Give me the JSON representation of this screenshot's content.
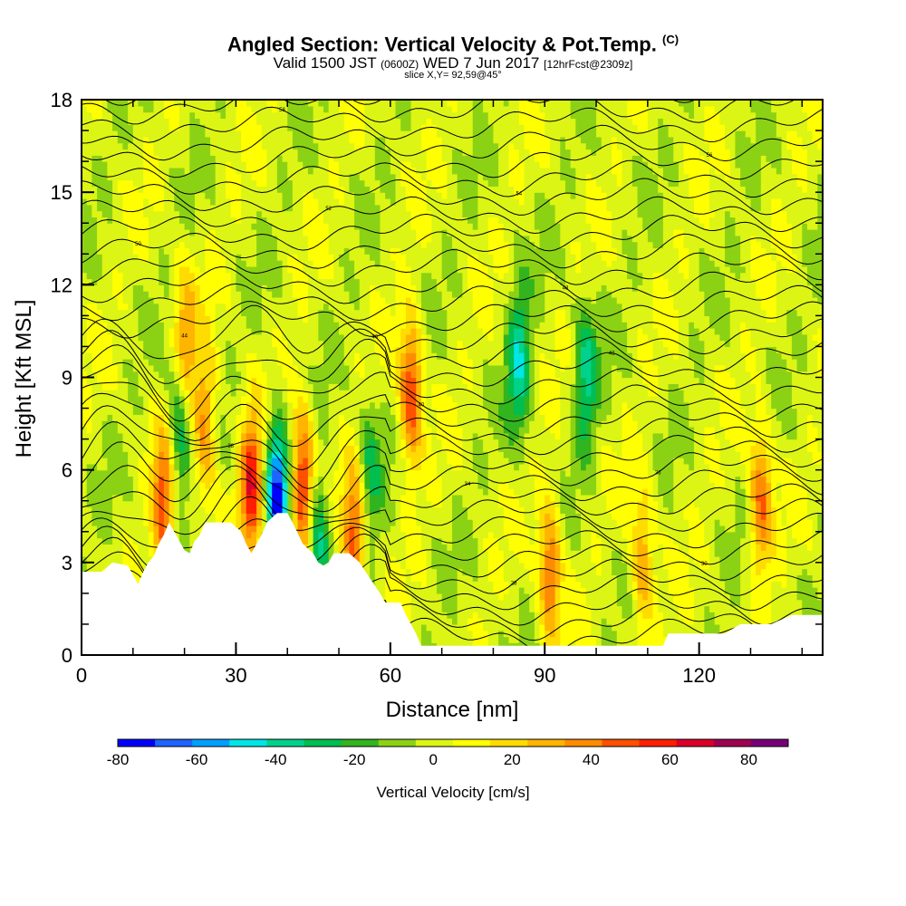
{
  "title": {
    "main": "Angled Section: Vertical Velocity & Pot.Temp.",
    "main_suffix": "(C)",
    "valid_prefix": "Valid 1500 JST",
    "valid_z": "(0600Z)",
    "valid_date": "WED 7 Jun 2017",
    "valid_fcst": "[12hrFcst@2309z]",
    "slice": "slice X,Y= 92,59@45°"
  },
  "chart_data": {
    "type": "heatmap",
    "xlabel": "Distance [nm]",
    "ylabel": "Height [Kft MSL]",
    "xlim": [
      0,
      144
    ],
    "ylim": [
      0,
      18
    ],
    "x_ticks": [
      0,
      30,
      60,
      90,
      120
    ],
    "y_ticks": [
      0,
      3,
      6,
      9,
      12,
      15,
      18
    ],
    "colorbar": {
      "title": "Vertical Velocity [cm/s]",
      "min": -80,
      "max": 90,
      "labels": [
        -80,
        -60,
        -40,
        -20,
        0,
        20,
        40,
        60,
        80
      ],
      "colors": [
        "#0000ff",
        "#1e64ff",
        "#00a0ff",
        "#00e6e6",
        "#00d28c",
        "#00be50",
        "#32b41e",
        "#8cd214",
        "#dcf514",
        "#ffff00",
        "#ffdc00",
        "#ffb400",
        "#ff8c00",
        "#ff5000",
        "#ff1e00",
        "#dc0028",
        "#a00050",
        "#780078"
      ]
    },
    "terrain": [
      [
        0,
        2.7
      ],
      [
        4,
        2.7
      ],
      [
        6,
        3.0
      ],
      [
        9,
        2.9
      ],
      [
        10,
        2.6
      ],
      [
        11,
        2.3
      ],
      [
        12,
        2.7
      ],
      [
        13,
        3.0
      ],
      [
        14,
        3.2
      ],
      [
        15,
        3.6
      ],
      [
        16,
        3.9
      ],
      [
        17,
        4.3
      ],
      [
        18,
        4.0
      ],
      [
        19,
        3.7
      ],
      [
        20,
        3.4
      ],
      [
        21,
        3.3
      ],
      [
        22,
        3.7
      ],
      [
        23,
        3.9
      ],
      [
        24,
        4.3
      ],
      [
        27,
        4.3
      ],
      [
        29,
        4.3
      ],
      [
        31,
        4.0
      ],
      [
        32,
        3.6
      ],
      [
        33,
        3.3
      ],
      [
        34,
        3.6
      ],
      [
        35,
        3.9
      ],
      [
        36,
        4.3
      ],
      [
        38,
        4.6
      ],
      [
        40,
        4.6
      ],
      [
        41,
        4.3
      ],
      [
        43,
        3.6
      ],
      [
        45,
        3.3
      ],
      [
        46,
        3.0
      ],
      [
        47,
        2.9
      ],
      [
        48,
        3.0
      ],
      [
        49,
        3.3
      ],
      [
        52,
        3.3
      ],
      [
        54,
        3.0
      ],
      [
        56,
        2.5
      ],
      [
        58,
        2.0
      ],
      [
        59,
        1.7
      ],
      [
        62,
        1.7
      ],
      [
        63,
        1.3
      ],
      [
        64,
        1.0
      ],
      [
        65,
        0.7
      ],
      [
        66,
        0.3
      ],
      [
        90,
        0.3
      ],
      [
        113,
        0.3
      ],
      [
        114,
        0.7
      ],
      [
        119,
        0.7
      ],
      [
        125,
        0.7
      ],
      [
        128,
        1.0
      ],
      [
        134,
        1.0
      ],
      [
        138,
        1.3
      ],
      [
        144,
        1.3
      ]
    ],
    "updraft_cores": [
      {
        "x": 16,
        "y": 4.8,
        "w": 50
      },
      {
        "x": 20,
        "y": 10.0,
        "w": 40
      },
      {
        "x": 24,
        "y": 7.5,
        "w": 40
      },
      {
        "x": 33,
        "y": 5.5,
        "w": 60
      },
      {
        "x": 43,
        "y": 5.5,
        "w": 60
      },
      {
        "x": 53,
        "y": 3.7,
        "w": 50
      },
      {
        "x": 64,
        "y": 8.5,
        "w": 55
      },
      {
        "x": 91,
        "y": 2.8,
        "w": 45
      },
      {
        "x": 109,
        "y": 3.0,
        "w": 35
      },
      {
        "x": 132,
        "y": 5.0,
        "w": 45
      }
    ],
    "downdraft_cores": [
      {
        "x": 19,
        "y": 7.5,
        "w": -40
      },
      {
        "x": 38,
        "y": 5.3,
        "w": -70
      },
      {
        "x": 46,
        "y": 3.6,
        "w": -40
      },
      {
        "x": 56,
        "y": 6.0,
        "w": -25
      },
      {
        "x": 85,
        "y": 9.5,
        "w": -40
      },
      {
        "x": 98,
        "y": 9.0,
        "w": -35
      }
    ],
    "isentropes": {
      "levels": 38,
      "labels": [
        "24",
        "26",
        "28",
        "30",
        "32",
        "34",
        "36",
        "38",
        "40",
        "42",
        "44",
        "46",
        "48",
        "50",
        "52",
        "54",
        "56",
        "58",
        "60",
        "62",
        "64"
      ]
    }
  }
}
